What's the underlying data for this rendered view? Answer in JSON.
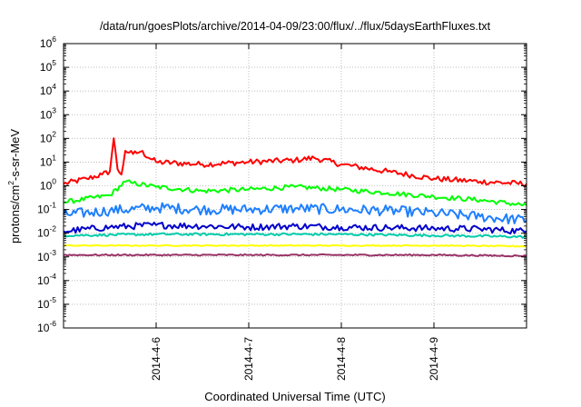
{
  "chart_data": {
    "type": "line",
    "title": "/data/run/goesPlots/archive/2014-04-09/23:00/flux/../flux/5daysEarthFluxes.txt",
    "xlabel": "Coordinated Universal Time (UTC)",
    "ylabel": {
      "prefix": "protons/cm",
      "sup": "2",
      "suffix": "-s-sr-MeV"
    },
    "x_range": [
      "2014-04-05 00:00",
      "2014-04-10 00:00"
    ],
    "x_ticks": [
      "2014-4-6",
      "2014-4-7",
      "2014-4-8",
      "2014-4-9"
    ],
    "y_scale": "log",
    "y_range": [
      1e-06,
      1000000.0
    ],
    "y_ticks": [
      {
        "base": "10",
        "exp": "-6",
        "value": 1e-06
      },
      {
        "base": "10",
        "exp": "-5",
        "value": 1e-05
      },
      {
        "base": "10",
        "exp": "-4",
        "value": 0.0001
      },
      {
        "base": "10",
        "exp": "-3",
        "value": 0.001
      },
      {
        "base": "10",
        "exp": "-2",
        "value": 0.01
      },
      {
        "base": "10",
        "exp": "-1",
        "value": 0.1
      },
      {
        "base": "10",
        "exp": "0",
        "value": 1
      },
      {
        "base": "10",
        "exp": "1",
        "value": 10
      },
      {
        "base": "10",
        "exp": "2",
        "value": 100
      },
      {
        "base": "10",
        "exp": "3",
        "value": 1000
      },
      {
        "base": "10",
        "exp": "4",
        "value": 10000
      },
      {
        "base": "10",
        "exp": "5",
        "value": 100000
      },
      {
        "base": "10",
        "exp": "6",
        "value": 1000000
      }
    ],
    "grid": true,
    "legend": "none",
    "series": [
      {
        "color": "#ff0000",
        "x": [
          "2014-04-05 00:00",
          "2014-04-05 06:00",
          "2014-04-05 10:00",
          "2014-04-05 12:00",
          "2014-04-05 13:00",
          "2014-04-05 14:00",
          "2014-04-05 15:00",
          "2014-04-05 16:00",
          "2014-04-05 17:00",
          "2014-04-05 18:00",
          "2014-04-05 20:00",
          "2014-04-06 00:00",
          "2014-04-06 12:00",
          "2014-04-07 00:00",
          "2014-04-07 12:00",
          "2014-04-07 17:00",
          "2014-04-08 00:00",
          "2014-04-08 12:00",
          "2014-04-09 00:00",
          "2014-04-09 12:00",
          "2014-04-10 00:00"
        ],
        "y": [
          1.2,
          2.0,
          3.0,
          4.0,
          100,
          5.0,
          3.0,
          30,
          25,
          22,
          28,
          10,
          8,
          10,
          12,
          15,
          8,
          4,
          2,
          1.5,
          1.2
        ]
      },
      {
        "color": "#00ff00",
        "x": [
          "2014-04-05 00:00",
          "2014-04-05 12:00",
          "2014-04-05 16:00",
          "2014-04-05 18:00",
          "2014-04-06 00:00",
          "2014-04-06 12:00",
          "2014-04-07 00:00",
          "2014-04-07 12:00",
          "2014-04-08 00:00",
          "2014-04-08 12:00",
          "2014-04-09 00:00",
          "2014-04-09 12:00",
          "2014-04-10 00:00"
        ],
        "y": [
          0.2,
          0.4,
          1.5,
          1.3,
          0.9,
          0.6,
          0.7,
          0.9,
          0.7,
          0.5,
          0.35,
          0.25,
          0.15
        ]
      },
      {
        "color": "#1e7fff",
        "x": [
          "2014-04-05 00:00",
          "2014-04-05 12:00",
          "2014-04-06 00:00",
          "2014-04-06 12:00",
          "2014-04-07 00:00",
          "2014-04-07 12:00",
          "2014-04-08 00:00",
          "2014-04-08 12:00",
          "2014-04-09 00:00",
          "2014-04-09 12:00",
          "2014-04-10 00:00"
        ],
        "y": [
          0.06,
          0.09,
          0.12,
          0.1,
          0.1,
          0.11,
          0.1,
          0.09,
          0.07,
          0.05,
          0.035
        ]
      },
      {
        "color": "#0000cc",
        "x": [
          "2014-04-05 00:00",
          "2014-04-05 12:00",
          "2014-04-06 00:00",
          "2014-04-06 12:00",
          "2014-04-07 00:00",
          "2014-04-07 12:00",
          "2014-04-08 00:00",
          "2014-04-08 12:00",
          "2014-04-09 00:00",
          "2014-04-09 12:00",
          "2014-04-10 00:00"
        ],
        "y": [
          0.012,
          0.018,
          0.022,
          0.02,
          0.018,
          0.02,
          0.018,
          0.017,
          0.016,
          0.015,
          0.012
        ]
      },
      {
        "color": "#00ccaa",
        "x": [
          "2014-04-05 00:00",
          "2014-04-06 00:00",
          "2014-04-07 00:00",
          "2014-04-08 00:00",
          "2014-04-09 00:00",
          "2014-04-10 00:00"
        ],
        "y": [
          0.008,
          0.009,
          0.009,
          0.009,
          0.008,
          0.007
        ]
      },
      {
        "color": "#ffff00",
        "x": [
          "2014-04-05 00:00",
          "2014-04-06 00:00",
          "2014-04-07 00:00",
          "2014-04-08 00:00",
          "2014-04-09 00:00",
          "2014-04-10 00:00"
        ],
        "y": [
          0.003,
          0.003,
          0.003,
          0.003,
          0.003,
          0.0028
        ]
      },
      {
        "color": "#993366",
        "x": [
          "2014-04-05 00:00",
          "2014-04-06 00:00",
          "2014-04-07 00:00",
          "2014-04-08 00:00",
          "2014-04-09 00:00",
          "2014-04-10 00:00"
        ],
        "y": [
          0.0012,
          0.0012,
          0.0012,
          0.0012,
          0.0012,
          0.0011
        ]
      }
    ]
  }
}
